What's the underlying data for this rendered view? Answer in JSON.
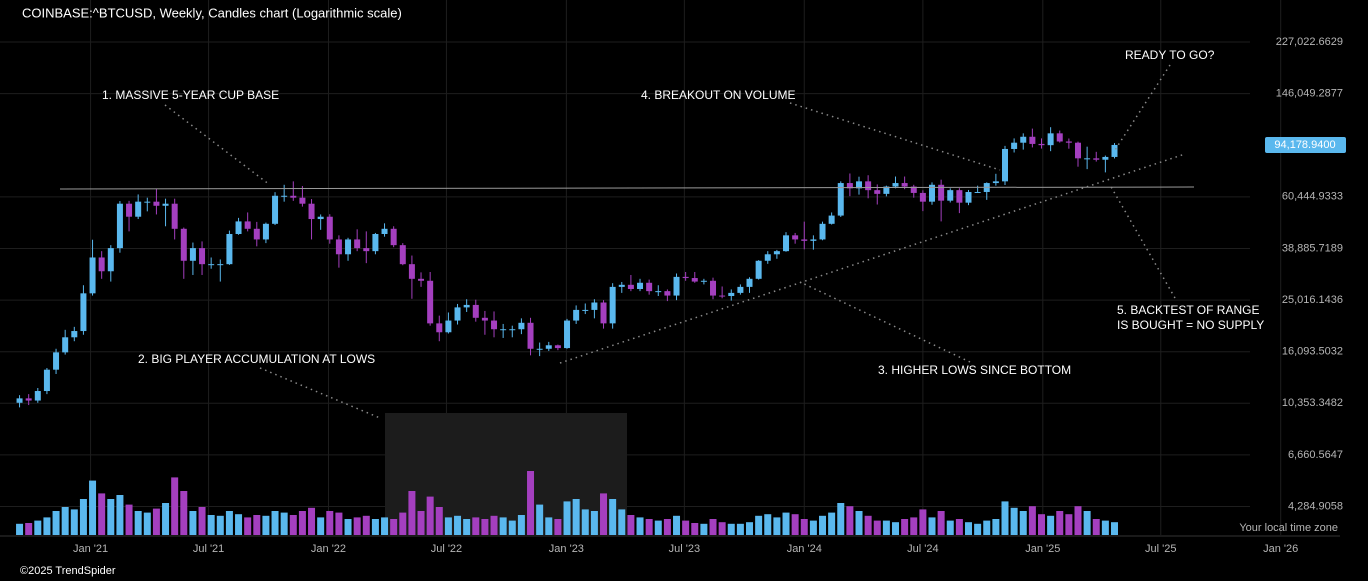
{
  "chart_data": {
    "type": "candlestick",
    "title": "COINBASE:^BTCUSD, Weekly, Candles chart (Logarithmic scale)",
    "footer": "©2025 TrendSpider",
    "timezone_note": "Your local time zone",
    "log_scale": true,
    "grid": true,
    "up_color": "#5ab8ee",
    "down_color": "#a43fbf",
    "annotations": [
      {
        "text": [
          "1. MASSIVE 5-YEAR CUP BASE"
        ]
      },
      {
        "text": [
          "2. BIG PLAYER ACCUMULATION AT LOWS"
        ]
      },
      {
        "text": [
          "3. HIGHER LOWS SINCE BOTTOM"
        ]
      },
      {
        "text": [
          "4. BREAKOUT ON VOLUME"
        ]
      },
      {
        "text": [
          "5. BACKTEST OF RANGE",
          "IS BOUGHT = NO SUPPLY"
        ]
      },
      {
        "text": [
          "READY TO GO?"
        ]
      }
    ],
    "last_price": {
      "value": 94178.94,
      "label": "94,178.9400"
    },
    "xlim": [
      "2020-08-15",
      "2026-04-02"
    ],
    "xticks": [
      {
        "value": "2021-01-01",
        "label": "Jan '21"
      },
      {
        "value": "2021-07-01",
        "label": "Jul '21"
      },
      {
        "value": "2022-01-01",
        "label": "Jan '22"
      },
      {
        "value": "2022-07-01",
        "label": "Jul '22"
      },
      {
        "value": "2023-01-01",
        "label": "Jan '23"
      },
      {
        "value": "2023-07-01",
        "label": "Jul '23"
      },
      {
        "value": "2024-01-01",
        "label": "Jan '24"
      },
      {
        "value": "2024-07-01",
        "label": "Jul '24"
      },
      {
        "value": "2025-01-01",
        "label": "Jan '25"
      },
      {
        "value": "2025-07-01",
        "label": "Jul '25"
      },
      {
        "value": "2026-01-01",
        "label": "Jan '26"
      }
    ],
    "ylim": [
      3360,
      325000
    ],
    "yticks": [
      {
        "value": 227022.6629,
        "label": "227,022.6629"
      },
      {
        "value": 146049.2877,
        "label": "146,049.2877"
      },
      {
        "value": 60444.9333,
        "label": "60,444.9333"
      },
      {
        "value": 38885.7189,
        "label": "38,885.7189"
      },
      {
        "value": 25016.1436,
        "label": "25,016.1436"
      },
      {
        "value": 16093.5032,
        "label": "16,093.5032"
      },
      {
        "value": 10353.3482,
        "label": "10,353.3482"
      },
      {
        "value": 6660.5647,
        "label": "6,660.5647"
      },
      {
        "value": 4284.9058,
        "label": "4,284.9058"
      }
    ],
    "x": [
      "2020-09-14",
      "2020-09-28",
      "2020-10-12",
      "2020-10-26",
      "2020-11-09",
      "2020-11-23",
      "2020-12-07",
      "2020-12-21",
      "2021-01-04",
      "2021-01-18",
      "2021-02-01",
      "2021-02-15",
      "2021-03-01",
      "2021-03-15",
      "2021-03-29",
      "2021-04-12",
      "2021-04-26",
      "2021-05-10",
      "2021-05-24",
      "2021-06-07",
      "2021-06-21",
      "2021-07-05",
      "2021-07-19",
      "2021-08-02",
      "2021-08-16",
      "2021-08-30",
      "2021-09-13",
      "2021-09-27",
      "2021-10-11",
      "2021-10-25",
      "2021-11-08",
      "2021-11-22",
      "2021-12-06",
      "2021-12-20",
      "2022-01-03",
      "2022-01-17",
      "2022-01-31",
      "2022-02-14",
      "2022-02-28",
      "2022-03-14",
      "2022-03-28",
      "2022-04-11",
      "2022-04-25",
      "2022-05-09",
      "2022-05-23",
      "2022-06-06",
      "2022-06-20",
      "2022-07-04",
      "2022-07-18",
      "2022-08-01",
      "2022-08-15",
      "2022-08-29",
      "2022-09-12",
      "2022-09-26",
      "2022-10-10",
      "2022-10-24",
      "2022-11-07",
      "2022-11-21",
      "2022-12-05",
      "2022-12-19",
      "2023-01-02",
      "2023-01-16",
      "2023-01-30",
      "2023-02-13",
      "2023-02-27",
      "2023-03-13",
      "2023-03-27",
      "2023-04-10",
      "2023-04-24",
      "2023-05-08",
      "2023-05-22",
      "2023-06-05",
      "2023-06-19",
      "2023-07-03",
      "2023-07-17",
      "2023-07-31",
      "2023-08-14",
      "2023-08-28",
      "2023-09-11",
      "2023-09-25",
      "2023-10-09",
      "2023-10-23",
      "2023-11-06",
      "2023-11-20",
      "2023-12-04",
      "2023-12-18",
      "2024-01-01",
      "2024-01-15",
      "2024-01-29",
      "2024-02-12",
      "2024-02-26",
      "2024-03-11",
      "2024-03-25",
      "2024-04-08",
      "2024-04-22",
      "2024-05-06",
      "2024-05-20",
      "2024-06-03",
      "2024-06-17",
      "2024-07-01",
      "2024-07-15",
      "2024-07-29",
      "2024-08-12",
      "2024-08-26",
      "2024-09-09",
      "2024-09-23",
      "2024-10-07",
      "2024-10-21",
      "2024-11-04",
      "2024-11-18",
      "2024-12-02",
      "2024-12-16",
      "2024-12-30",
      "2025-01-13",
      "2025-01-27",
      "2025-02-10",
      "2025-02-24",
      "2025-03-10",
      "2025-03-24",
      "2025-04-07",
      "2025-04-21"
    ],
    "open": [
      10400,
      10800,
      10600,
      11500,
      13800,
      16000,
      18200,
      19200,
      26500,
      36000,
      32000,
      39000,
      57000,
      51000,
      58000,
      58000,
      56000,
      57000,
      46000,
      35000,
      39000,
      34000,
      34000,
      34000,
      44000,
      49000,
      46000,
      42000,
      48000,
      61000,
      61000,
      60000,
      57000,
      50000,
      51000,
      42000,
      37000,
      42000,
      39000,
      38000,
      44000,
      46000,
      40000,
      34000,
      30000,
      29500,
      20500,
      19000,
      21000,
      23500,
      24000,
      21500,
      21000,
      19500,
      19500,
      19500,
      20600,
      16500,
      16500,
      17000,
      16600,
      21000,
      23000,
      23000,
      24500,
      20500,
      28000,
      28500,
      27500,
      29000,
      27000,
      27000,
      26000,
      30500,
      30200,
      29300,
      29500,
      26000,
      25900,
      26600,
      28000,
      30000,
      35000,
      37000,
      38000,
      43500,
      42000,
      41500,
      42000,
      48000,
      51500,
      68000,
      65000,
      69000,
      64000,
      62000,
      66000,
      68000,
      66000,
      62500,
      58000,
      67000,
      58500,
      64000,
      57500,
      63000,
      63000,
      68000,
      69000,
      91000,
      96000,
      101000,
      95000,
      94000,
      104000,
      97000,
      96000,
      84000,
      84000,
      83000,
      85000
    ],
    "high": [
      11100,
      11200,
      11800,
      14000,
      16500,
      19400,
      19900,
      28400,
      41900,
      38000,
      40000,
      58300,
      58400,
      61700,
      60000,
      64800,
      59500,
      59500,
      46500,
      40900,
      41300,
      36000,
      35400,
      45300,
      50500,
      52900,
      48800,
      48500,
      62900,
      67000,
      69000,
      66300,
      59300,
      52000,
      52100,
      43500,
      42600,
      45800,
      45000,
      44400,
      48200,
      47000,
      40700,
      36600,
      31700,
      31800,
      21900,
      22500,
      24200,
      25200,
      25100,
      22800,
      22700,
      20400,
      20100,
      21400,
      21500,
      17400,
      17500,
      17100,
      21300,
      23900,
      24300,
      25200,
      25000,
      28900,
      29200,
      31000,
      30000,
      29800,
      28400,
      27400,
      31400,
      31800,
      31800,
      30000,
      30300,
      28100,
      27400,
      28600,
      30400,
      35200,
      38000,
      38400,
      44700,
      44400,
      48900,
      43500,
      48900,
      52900,
      69000,
      73800,
      71800,
      72700,
      67200,
      66500,
      71900,
      71900,
      67000,
      63900,
      68400,
      70000,
      65000,
      65100,
      64100,
      66500,
      68400,
      73600,
      93400,
      99600,
      104000,
      108300,
      99600,
      109600,
      106500,
      99500,
      96900,
      92800,
      88800,
      86000,
      95700
    ],
    "low": [
      10000,
      10200,
      10400,
      11200,
      13300,
      15700,
      17600,
      18600,
      26000,
      30000,
      29300,
      37500,
      45000,
      50000,
      53400,
      52000,
      47000,
      42000,
      30000,
      31000,
      31000,
      32700,
      29300,
      33800,
      43700,
      45000,
      39600,
      40700,
      47500,
      58000,
      58400,
      55600,
      42000,
      45600,
      40500,
      33000,
      35000,
      38000,
      34300,
      37000,
      43000,
      39300,
      33700,
      25300,
      28000,
      20100,
      17600,
      18800,
      20300,
      22600,
      20800,
      18600,
      18200,
      18100,
      18200,
      18700,
      15600,
      15500,
      16200,
      16300,
      16500,
      20400,
      22200,
      21400,
      19600,
      19600,
      26600,
      27000,
      27000,
      26200,
      25900,
      24800,
      25000,
      29500,
      29000,
      28600,
      25200,
      25400,
      24900,
      26200,
      26600,
      29800,
      34100,
      35600,
      37800,
      40500,
      38600,
      38500,
      41700,
      47700,
      50900,
      60800,
      61600,
      59700,
      56600,
      60700,
      65000,
      64500,
      60000,
      53500,
      56500,
      49000,
      57600,
      52600,
      56300,
      62600,
      58900,
      66500,
      66900,
      88300,
      90500,
      92200,
      91300,
      89300,
      96100,
      91200,
      78200,
      76600,
      81700,
      74500,
      83900
    ],
    "close": [
      10800,
      10600,
      11500,
      13800,
      16000,
      18200,
      19200,
      26500,
      36000,
      32000,
      39000,
      57000,
      51000,
      58000,
      58000,
      56000,
      57000,
      46000,
      35000,
      39000,
      34000,
      34000,
      34000,
      44000,
      49000,
      46000,
      42000,
      48000,
      61000,
      61000,
      60000,
      57000,
      50000,
      51000,
      42000,
      37000,
      42000,
      39000,
      38000,
      44000,
      46000,
      40000,
      34000,
      30000,
      29500,
      20500,
      19000,
      21000,
      23500,
      24000,
      21500,
      21000,
      19500,
      19500,
      19500,
      20600,
      16500,
      16500,
      17000,
      16600,
      21000,
      23000,
      23000,
      24500,
      20500,
      28000,
      28500,
      27500,
      29000,
      27000,
      27000,
      26000,
      30500,
      30200,
      29300,
      29500,
      26000,
      25900,
      26600,
      28000,
      30000,
      35000,
      37000,
      38000,
      43500,
      42000,
      41500,
      42000,
      48000,
      51500,
      68000,
      65000,
      69000,
      64000,
      62000,
      66000,
      68000,
      66000,
      62500,
      58000,
      67000,
      58500,
      64000,
      57500,
      63000,
      63000,
      68000,
      69000,
      91000,
      96000,
      101000,
      95000,
      94000,
      104000,
      97000,
      96000,
      84000,
      84000,
      83000,
      85000,
      94178.94
    ],
    "volume": [
      14,
      15,
      18,
      22,
      30,
      35,
      32,
      45,
      68,
      52,
      45,
      50,
      38,
      30,
      28,
      33,
      40,
      72,
      55,
      30,
      35,
      25,
      24,
      30,
      26,
      22,
      25,
      24,
      30,
      28,
      25,
      30,
      34,
      22,
      30,
      28,
      20,
      22,
      24,
      20,
      22,
      20,
      28,
      55,
      30,
      48,
      35,
      22,
      24,
      20,
      22,
      20,
      24,
      22,
      18,
      25,
      80,
      38,
      22,
      20,
      42,
      45,
      32,
      30,
      52,
      45,
      32,
      25,
      22,
      20,
      18,
      20,
      24,
      18,
      15,
      14,
      20,
      16,
      14,
      14,
      16,
      24,
      26,
      22,
      28,
      26,
      20,
      18,
      24,
      28,
      40,
      36,
      30,
      24,
      18,
      18,
      16,
      20,
      22,
      32,
      22,
      30,
      18,
      20,
      16,
      14,
      18,
      20,
      42,
      34,
      30,
      36,
      26,
      24,
      30,
      26,
      36,
      30,
      20,
      18,
      16
    ]
  }
}
